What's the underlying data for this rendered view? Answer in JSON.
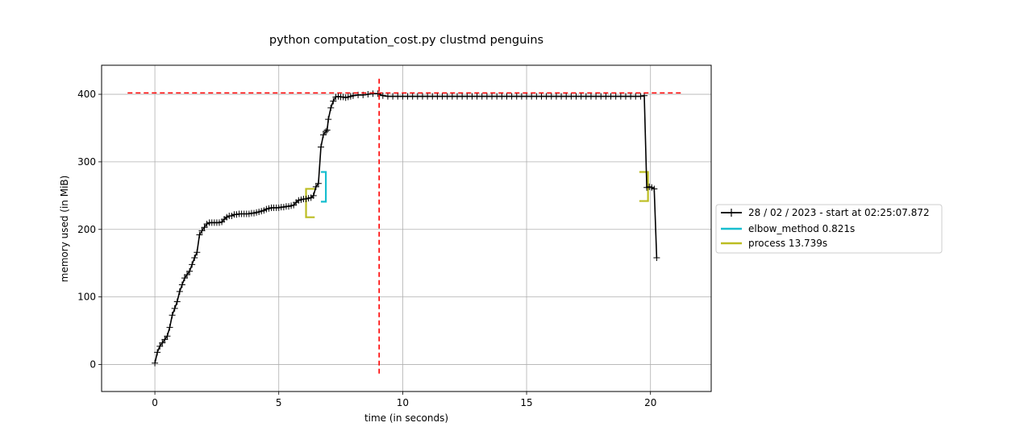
{
  "chart_data": {
    "type": "line",
    "title": "python computation_cost.py clustmd penguins",
    "xlabel": "time (in seconds)",
    "ylabel": "memory used (in MiB)",
    "xlim": [
      -2.15,
      22.45
    ],
    "ylim": [
      -40,
      443
    ],
    "xticks": [
      0,
      5,
      10,
      15,
      20
    ],
    "yticks": [
      0,
      100,
      200,
      300,
      400
    ],
    "grid": true,
    "legend_placement": "outside-right",
    "colors": {
      "memory": "#000000",
      "elbow_method": "#17becf",
      "process": "#bcbd22",
      "max_marker": "#ff0000"
    },
    "series": [
      {
        "name": "28 / 02 / 2023 - start at 02:25:07.872",
        "x": [
          0.0,
          0.1,
          0.2,
          0.3,
          0.4,
          0.5,
          0.6,
          0.7,
          0.8,
          0.9,
          1.0,
          1.1,
          1.2,
          1.3,
          1.4,
          1.5,
          1.6,
          1.7,
          1.8,
          1.9,
          2.0,
          2.1,
          2.2,
          2.3,
          2.4,
          2.5,
          2.6,
          2.7,
          2.8,
          2.9,
          3.0,
          3.1,
          3.2,
          3.3,
          3.4,
          3.5,
          3.6,
          3.7,
          3.8,
          3.9,
          4.0,
          4.1,
          4.2,
          4.3,
          4.4,
          4.5,
          4.6,
          4.7,
          4.8,
          4.9,
          5.0,
          5.1,
          5.2,
          5.3,
          5.4,
          5.5,
          5.6,
          5.7,
          5.8,
          5.9,
          6.0,
          6.1,
          6.2,
          6.3,
          6.4,
          6.5,
          6.6,
          6.7,
          6.8,
          6.9,
          6.95,
          7.0,
          7.1,
          7.2,
          7.3,
          7.4,
          7.5,
          7.6,
          7.7,
          7.8,
          7.9,
          8.0,
          8.2,
          8.4,
          8.6,
          8.8,
          9.0,
          9.2,
          9.4,
          9.6,
          9.8,
          10.0,
          10.2,
          10.4,
          10.6,
          10.8,
          11.0,
          11.2,
          11.4,
          11.6,
          11.8,
          12.0,
          12.2,
          12.4,
          12.6,
          12.8,
          13.0,
          13.2,
          13.4,
          13.6,
          13.8,
          14.0,
          14.2,
          14.4,
          14.6,
          14.8,
          15.0,
          15.2,
          15.4,
          15.6,
          15.8,
          16.0,
          16.2,
          16.4,
          16.6,
          16.8,
          17.0,
          17.2,
          17.4,
          17.6,
          17.8,
          18.0,
          18.2,
          18.4,
          18.6,
          18.8,
          19.0,
          19.2,
          19.4,
          19.6,
          19.75,
          19.85,
          19.95,
          20.05,
          20.15,
          20.25
        ],
        "values": [
          2,
          18,
          27,
          32,
          37,
          42,
          55,
          73,
          83,
          93,
          108,
          118,
          128,
          133,
          138,
          148,
          158,
          166,
          192,
          198,
          203,
          208,
          210,
          210,
          210,
          210,
          210,
          211,
          215,
          218,
          220,
          220,
          222,
          222,
          223,
          223,
          223,
          223,
          223,
          224,
          224,
          225,
          226,
          227,
          228,
          230,
          231,
          232,
          232,
          232,
          232,
          233,
          233,
          234,
          234,
          235,
          236,
          240,
          243,
          244,
          245,
          245,
          246,
          247,
          250,
          263,
          268,
          322,
          340,
          345,
          347,
          363,
          380,
          390,
          396,
          397,
          396,
          396,
          395,
          396,
          397,
          398,
          399,
          399,
          400,
          401,
          401,
          398,
          397,
          397,
          397,
          397,
          397,
          397,
          397,
          397,
          397,
          397,
          397,
          397,
          397,
          397,
          397,
          397,
          397,
          397,
          397,
          397,
          397,
          397,
          397,
          397,
          397,
          397,
          397,
          397,
          397,
          397,
          397,
          397,
          397,
          397,
          397,
          397,
          397,
          397,
          397,
          397,
          397,
          397,
          397,
          397,
          397,
          397,
          397,
          397,
          397,
          397,
          397,
          397,
          398,
          262,
          263,
          262,
          260,
          158
        ],
        "marker": "+"
      }
    ],
    "brackets": [
      {
        "name": "elbow_method 0.821s",
        "start": 6.7,
        "end": 6.9,
        "low": 241,
        "high": 285
      },
      {
        "name": "process 13.739s",
        "start": 6.1,
        "end": 19.9,
        "low": 218,
        "high": 260,
        "end_low": 242,
        "end_high": 285
      }
    ],
    "max_memory_marker": {
      "x": 9.05,
      "y": 402
    }
  }
}
